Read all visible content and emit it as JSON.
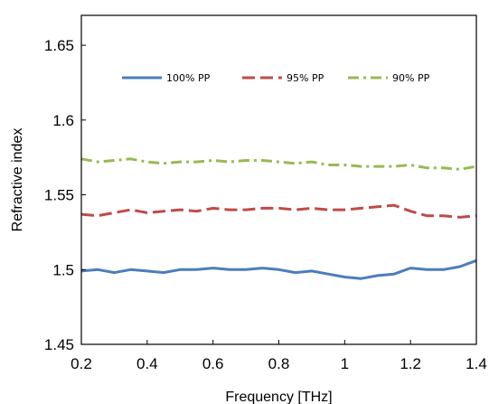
{
  "chart_data": {
    "type": "line",
    "xlabel": "Frequency [THz]",
    "ylabel": "Refractive index",
    "xlim": [
      0.2,
      1.4
    ],
    "ylim": [
      1.45,
      1.67
    ],
    "x_ticks": [
      "0.2",
      "0.4",
      "0.6",
      "0.8",
      "1",
      "1.2",
      "1.4"
    ],
    "y_ticks": [
      "1.45",
      "1.5",
      "1.55",
      "1.6",
      "1.65"
    ],
    "grid": false,
    "legend_position": "top",
    "series": [
      {
        "name": "100% PP",
        "color": "#4a7ebb",
        "dash": "solid",
        "x": [
          0.2,
          0.25,
          0.3,
          0.35,
          0.4,
          0.45,
          0.5,
          0.55,
          0.6,
          0.65,
          0.7,
          0.75,
          0.8,
          0.85,
          0.9,
          0.95,
          1.0,
          1.05,
          1.1,
          1.15,
          1.2,
          1.25,
          1.3,
          1.35,
          1.4
        ],
        "values": [
          1.499,
          1.5,
          1.498,
          1.5,
          1.499,
          1.498,
          1.5,
          1.5,
          1.501,
          1.5,
          1.5,
          1.501,
          1.5,
          1.498,
          1.499,
          1.497,
          1.495,
          1.494,
          1.496,
          1.497,
          1.501,
          1.5,
          1.5,
          1.502,
          1.506
        ]
      },
      {
        "name": "95% PP",
        "color": "#be4b48",
        "dash": "dash",
        "x": [
          0.2,
          0.25,
          0.3,
          0.35,
          0.4,
          0.45,
          0.5,
          0.55,
          0.6,
          0.65,
          0.7,
          0.75,
          0.8,
          0.85,
          0.9,
          0.95,
          1.0,
          1.05,
          1.1,
          1.15,
          1.2,
          1.25,
          1.3,
          1.35,
          1.4
        ],
        "values": [
          1.537,
          1.536,
          1.538,
          1.54,
          1.538,
          1.539,
          1.54,
          1.539,
          1.541,
          1.54,
          1.54,
          1.541,
          1.541,
          1.54,
          1.541,
          1.54,
          1.54,
          1.541,
          1.542,
          1.543,
          1.539,
          1.536,
          1.536,
          1.535,
          1.536
        ]
      },
      {
        "name": "90% PP",
        "color": "#98b954",
        "dash": "dashdot",
        "x": [
          0.2,
          0.25,
          0.3,
          0.35,
          0.4,
          0.45,
          0.5,
          0.55,
          0.6,
          0.65,
          0.7,
          0.75,
          0.8,
          0.85,
          0.9,
          0.95,
          1.0,
          1.05,
          1.1,
          1.15,
          1.2,
          1.25,
          1.3,
          1.35,
          1.4
        ],
        "values": [
          1.574,
          1.572,
          1.573,
          1.574,
          1.572,
          1.571,
          1.572,
          1.572,
          1.573,
          1.572,
          1.573,
          1.573,
          1.572,
          1.571,
          1.572,
          1.57,
          1.57,
          1.569,
          1.569,
          1.569,
          1.57,
          1.568,
          1.568,
          1.567,
          1.569
        ]
      }
    ]
  }
}
